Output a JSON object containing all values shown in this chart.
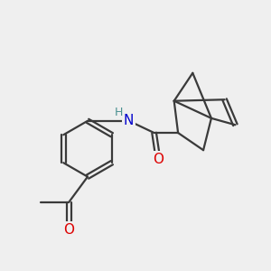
{
  "bg_color": "#efefef",
  "bond_color": "#3a3a3a",
  "bond_width": 1.6,
  "atom_colors": {
    "N": "#0000cc",
    "O": "#dd0000",
    "H": "#4a9090"
  },
  "font_size_atom": 11,
  "font_size_H": 9
}
